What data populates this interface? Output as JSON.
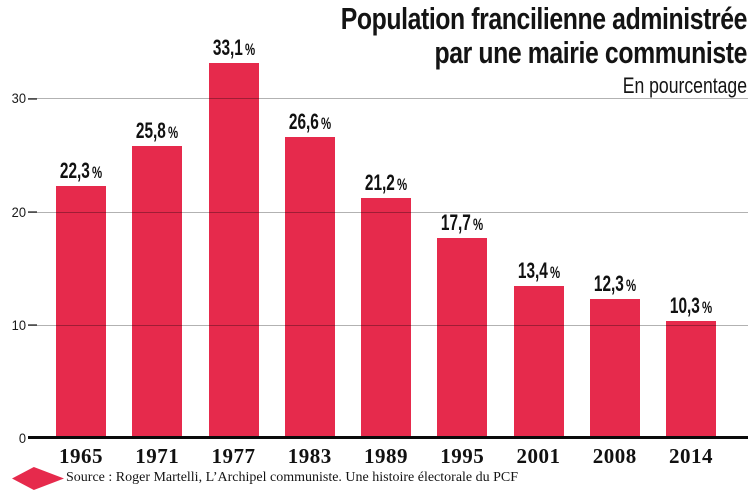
{
  "header": {
    "title_line1": "Population francilienne administrée",
    "title_line2": "par une mairie communiste",
    "subtitle": "En pourcentage"
  },
  "chart_data": {
    "type": "bar",
    "title": "Population francilienne administrée par une mairie communiste",
    "subtitle": "En pourcentage",
    "categories": [
      "1965",
      "1971",
      "1977",
      "1983",
      "1989",
      "1995",
      "2001",
      "2008",
      "2014"
    ],
    "values": [
      22.3,
      25.8,
      33.1,
      26.6,
      21.2,
      17.7,
      13.4,
      12.3,
      10.3
    ],
    "value_labels": [
      "22,3",
      "25,8",
      "33,1",
      "26,6",
      "21,2",
      "17,7",
      "13,4",
      "12,3",
      "10,3"
    ],
    "percent_sign": "%",
    "yticks": [
      0,
      10,
      20,
      30
    ],
    "ylim": [
      0,
      35
    ],
    "grid": true,
    "legend": "none",
    "bar_color": "#e62a4c",
    "grid_color": "rgba(0,0,0,0.30)",
    "text_color": "#141414"
  },
  "footer": {
    "source": "Source : Roger Martelli, L’Archipel communiste. Une histoire électorale du PCF",
    "logo": "diamond-icon"
  }
}
